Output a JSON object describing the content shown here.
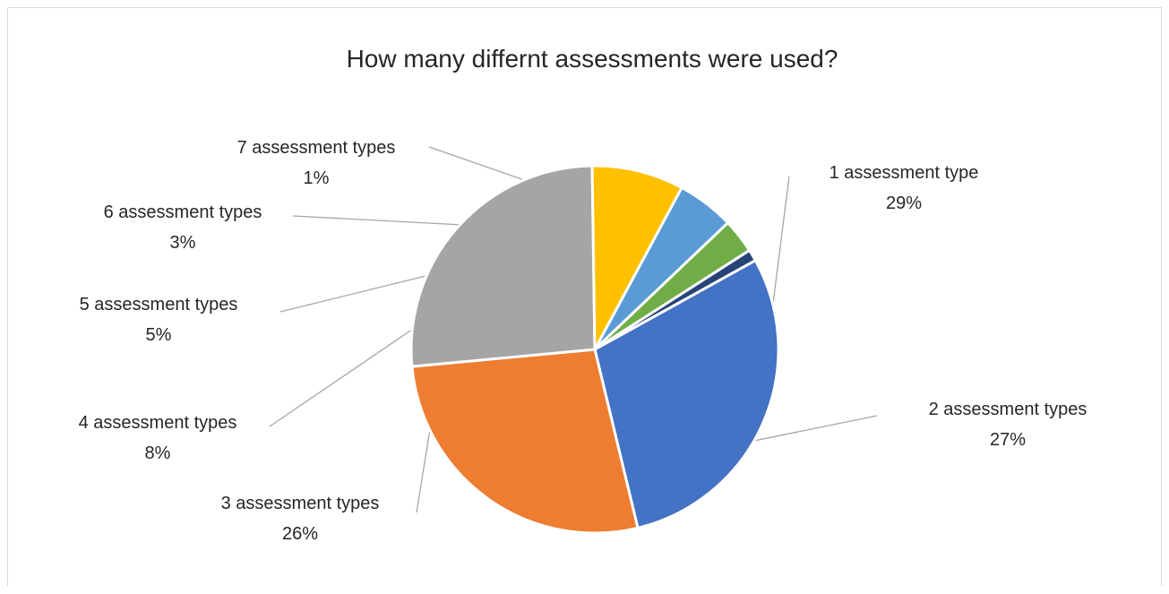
{
  "chart_data": {
    "type": "pie",
    "title": "How many differnt assessments were used?",
    "categories": [
      "1 assessment type",
      "2  assessment types",
      "3  assessment types",
      "4  assessment types",
      "5  assessment types",
      "6 assessment types",
      "7 assessment types"
    ],
    "values": [
      29,
      27,
      26,
      8,
      5,
      3,
      1
    ],
    "value_labels": [
      "29%",
      "27%",
      "26%",
      "8%",
      "5%",
      "3%",
      "1%"
    ],
    "colors": [
      "#4472C4",
      "#ED7D31",
      "#A5A5A5",
      "#FFC000",
      "#5B9BD5",
      "#70AD47",
      "#264478"
    ],
    "start_angle_deg": 61,
    "direction": "clockwise",
    "data_labels": "outside-with-leader-lines",
    "legend": "none"
  }
}
